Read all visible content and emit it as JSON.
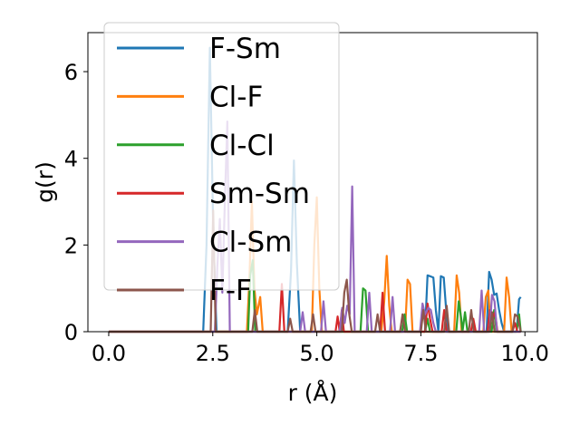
{
  "chart_data": {
    "type": "line",
    "title": "",
    "xlabel": "r (Å)",
    "ylabel": "g(r)",
    "xlim": [
      -0.5,
      10.3
    ],
    "ylim": [
      0,
      6.9
    ],
    "xticks": [
      {
        "value": 0.0,
        "label": "0.0"
      },
      {
        "value": 2.5,
        "label": "2.5"
      },
      {
        "value": 5.0,
        "label": "5.0"
      },
      {
        "value": 7.5,
        "label": "7.5"
      },
      {
        "value": 10.0,
        "label": "10.0"
      }
    ],
    "yticks": [
      {
        "value": 0,
        "label": "0"
      },
      {
        "value": 2,
        "label": "2"
      },
      {
        "value": 4,
        "label": "4"
      },
      {
        "value": 6,
        "label": "6"
      }
    ],
    "grid": false,
    "legend_position": "upper-left",
    "series": [
      {
        "name": "F-Sm",
        "color": "#1f77b4",
        "x": [
          0,
          2.27,
          2.35,
          2.43,
          2.51,
          2.59,
          4.3,
          4.38,
          4.45,
          4.52,
          4.6,
          7.6,
          7.66,
          7.72,
          7.8,
          7.86,
          7.92,
          7.98,
          8.05,
          8.1,
          8.16,
          9.08,
          9.14,
          9.2,
          9.26,
          9.32,
          9.38,
          9.44,
          9.5,
          9.8,
          9.86,
          9.9
        ],
        "y": [
          0,
          0,
          2.0,
          6.55,
          2.4,
          0,
          0,
          1.4,
          3.95,
          1.6,
          0,
          0,
          1.3,
          1.28,
          1.25,
          0.5,
          0,
          1.28,
          1.25,
          0.6,
          0,
          0,
          1.38,
          1.2,
          0.85,
          0.88,
          0.5,
          0.2,
          0,
          0,
          0.75,
          0.8
        ]
      },
      {
        "name": "Cl-F",
        "color": "#ff7f0e",
        "x": [
          0,
          3.32,
          3.38,
          3.44,
          3.5,
          3.56,
          3.64,
          3.7,
          4.88,
          4.94,
          5.0,
          5.06,
          5.12,
          6.55,
          6.62,
          6.68,
          6.74,
          6.8,
          7.12,
          7.18,
          7.24,
          7.3,
          8.3,
          8.36,
          8.42,
          8.48,
          9.0,
          9.06,
          9.12,
          9.18,
          9.5,
          9.56,
          9.62,
          9.68,
          9.9
        ],
        "y": [
          0,
          0,
          1.2,
          3.0,
          1.0,
          0.4,
          0.8,
          0,
          0,
          2.0,
          3.1,
          1.0,
          0,
          0,
          0.7,
          1.75,
          0.6,
          0,
          0,
          1.2,
          1.1,
          0,
          0,
          1.3,
          0.9,
          0,
          0,
          0.8,
          0.95,
          0,
          0,
          1.25,
          0.8,
          0,
          0
        ]
      },
      {
        "name": "Cl-Cl",
        "color": "#2ca02c",
        "x": [
          0,
          3.35,
          3.4,
          3.46,
          3.52,
          6.05,
          6.11,
          6.17,
          6.23,
          7.05,
          7.11,
          7.17,
          7.6,
          7.66,
          7.72,
          8.35,
          8.41,
          8.47,
          8.5,
          8.56,
          8.62,
          9.2,
          9.26,
          9.32,
          9.8,
          9.86,
          9.9
        ],
        "y": [
          0,
          0,
          1.3,
          1.65,
          0,
          0,
          1.0,
          0.95,
          0,
          0,
          0.4,
          0,
          0,
          0.3,
          0,
          0,
          0.7,
          0.3,
          0,
          0.45,
          0,
          0,
          0.5,
          0,
          0,
          0.4,
          0
        ]
      },
      {
        "name": "Sm-Sm",
        "color": "#d62728",
        "x": [
          0,
          4.1,
          4.16,
          4.22,
          5.45,
          5.5,
          5.55,
          5.6,
          5.65,
          6.52,
          6.58,
          6.64,
          7.6,
          7.66,
          7.72,
          7.78,
          8.0,
          8.06,
          8.12,
          8.7,
          8.76,
          8.82,
          9.1,
          9.16,
          9.22,
          9.28,
          9.34,
          9.7,
          9.76,
          9.82,
          9.9
        ],
        "y": [
          0,
          0,
          1.1,
          0,
          0,
          0.35,
          0,
          0.5,
          0,
          0,
          0.9,
          0,
          0,
          0.65,
          0.3,
          0,
          0,
          0.5,
          0,
          0,
          0.3,
          0,
          0,
          0.5,
          0.3,
          0.45,
          0,
          0,
          0.2,
          0,
          0
        ]
      },
      {
        "name": "Cl-Sm",
        "color": "#9467bd",
        "x": [
          0,
          2.55,
          2.61,
          2.67,
          2.73,
          2.79,
          2.85,
          2.91,
          4.6,
          4.66,
          4.72,
          5.1,
          5.16,
          5.22,
          5.55,
          5.61,
          5.67,
          5.73,
          5.79,
          5.85,
          5.91,
          6.2,
          6.26,
          6.32,
          6.76,
          6.82,
          6.88,
          7.48,
          7.54,
          7.6,
          7.68,
          7.74,
          7.8,
          7.86,
          8.9,
          8.96,
          9.02,
          9.15,
          9.21,
          9.27,
          9.33,
          9.9
        ],
        "y": [
          0,
          0,
          1.5,
          2.6,
          0.9,
          3.0,
          4.85,
          0,
          0,
          0.45,
          0,
          0,
          0.7,
          0,
          0,
          0.55,
          0.2,
          0.6,
          0.4,
          3.35,
          0,
          0,
          0.9,
          0,
          0,
          0.8,
          0,
          0,
          0.65,
          0.4,
          0.55,
          0.5,
          0.2,
          0,
          0,
          0.95,
          0,
          0,
          0.85,
          0.7,
          0,
          0
        ]
      },
      {
        "name": "F-F",
        "color": "#8c564b",
        "x": [
          0,
          2.45,
          2.51,
          2.57,
          3.45,
          3.51,
          3.57,
          4.3,
          4.36,
          4.42,
          4.85,
          4.91,
          4.97,
          5.6,
          5.66,
          5.72,
          5.78,
          5.84,
          6.4,
          6.46,
          6.52,
          7.0,
          7.06,
          7.12,
          7.5,
          7.56,
          7.62,
          8.06,
          8.12,
          8.18,
          8.65,
          8.71,
          8.77,
          9.15,
          9.21,
          9.27,
          9.7,
          9.76,
          9.82,
          9.9
        ],
        "y": [
          0,
          0,
          2.8,
          0,
          0,
          0.5,
          0,
          0,
          0.3,
          0,
          0,
          0.4,
          0,
          0,
          0.9,
          1.2,
          0.4,
          0,
          0,
          0.4,
          0,
          0,
          0.4,
          0,
          0,
          0.5,
          0,
          0,
          0.6,
          0,
          0,
          0.5,
          0,
          0,
          0.45,
          0,
          0,
          0.4,
          0.35,
          0
        ]
      }
    ]
  }
}
